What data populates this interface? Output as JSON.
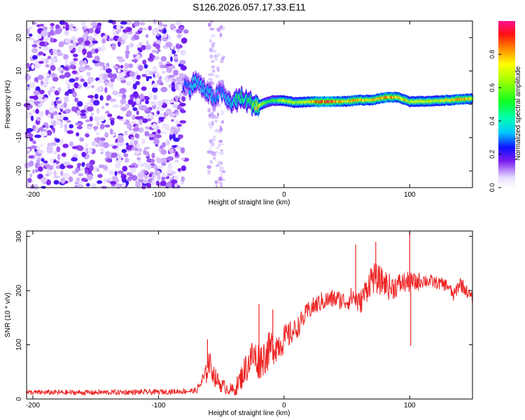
{
  "title": "S126.2026.057.17.33.E11",
  "chart_data": [
    {
      "type": "heatmap",
      "name": "spectrogram",
      "title": "S126.2026.057.17.33.E11",
      "xlabel": "Height of straight line (km)",
      "ylabel": "Frequency (Hz)",
      "xlim": [
        -205,
        150
      ],
      "ylim": [
        -25,
        25
      ],
      "x_ticks": [
        -200,
        -100,
        0,
        100
      ],
      "x_tick_labels": [
        "-200",
        "-100",
        "0",
        "100"
      ],
      "y_ticks": [
        -20,
        -10,
        0,
        10,
        20
      ],
      "y_tick_labels": [
        "-20",
        "-10",
        "0",
        "10",
        "20"
      ],
      "noise_region": {
        "x_start": -205,
        "x_end": -78
      },
      "sparse_noise": {
        "x_start": -60,
        "x_end": -48
      },
      "ridge": {
        "x": [
          -80,
          -75,
          -70,
          -65,
          -60,
          -55,
          -50,
          -45,
          -40,
          -35,
          -30,
          -25,
          -20,
          -15,
          -10,
          -5,
          0,
          10,
          20,
          30,
          40,
          50,
          60,
          70,
          80,
          90,
          100,
          110,
          120,
          130,
          140,
          150
        ],
        "freq": [
          6,
          5,
          7,
          5,
          3,
          2,
          4,
          1,
          0.5,
          2,
          1,
          0.2,
          -0.5,
          0.5,
          1,
          1.2,
          1,
          0.5,
          0.8,
          0.8,
          0.8,
          0.9,
          1.3,
          1.2,
          2.0,
          2.2,
          0.8,
          0.9,
          1.0,
          1.2,
          1.5,
          1.8
        ],
        "amplitude": [
          0.25,
          0.3,
          0.4,
          0.3,
          0.35,
          0.3,
          0.3,
          0.35,
          0.4,
          0.5,
          0.45,
          0.55,
          0.8,
          0.55,
          0.5,
          0.55,
          0.7,
          0.65,
          0.75,
          0.9,
          0.85,
          0.75,
          0.8,
          0.75,
          0.85,
          0.8,
          0.7,
          0.75,
          0.7,
          0.75,
          0.8,
          0.75
        ]
      },
      "colorbar": {
        "label": "Normalized spectral amplitude",
        "range": [
          0,
          1
        ],
        "ticks": [
          0.0,
          0.2,
          0.4,
          0.6,
          0.8
        ],
        "tick_labels": [
          "0.0",
          "0.2",
          "0.4",
          "0.6",
          "0.8"
        ]
      }
    },
    {
      "type": "line",
      "name": "snr",
      "xlabel": "Height of straight line (km)",
      "ylabel": "SNR (10 * v/v)",
      "xlim": [
        -205,
        150
      ],
      "ylim": [
        0,
        310
      ],
      "x_ticks": [
        -200,
        -100,
        0,
        100
      ],
      "x_tick_labels": [
        "-200",
        "-100",
        "0",
        "100"
      ],
      "y_ticks": [
        0,
        100,
        200,
        300
      ],
      "y_tick_labels": [
        "0",
        "100",
        "200",
        "300"
      ],
      "color": "#ee2222",
      "series": [
        {
          "name": "SNR",
          "x": [
            -205,
            -150,
            -100,
            -70,
            -62,
            -60,
            -55,
            -50,
            -45,
            -40,
            -35,
            -30,
            -25,
            -20,
            -15,
            -10,
            -5,
            0,
            10,
            20,
            30,
            40,
            50,
            55,
            60,
            65,
            70,
            75,
            80,
            85,
            90,
            95,
            100,
            105,
            110,
            120,
            130,
            135,
            140,
            145,
            150
          ],
          "y": [
            12,
            12,
            13,
            15,
            45,
            70,
            40,
            25,
            20,
            15,
            35,
            60,
            80,
            70,
            80,
            95,
            100,
            110,
            130,
            165,
            180,
            185,
            180,
            190,
            175,
            200,
            225,
            220,
            215,
            205,
            210,
            215,
            215,
            215,
            220,
            215,
            210,
            190,
            215,
            200,
            185
          ],
          "noise_amplitude": [
            5,
            5,
            5,
            5,
            20,
            25,
            18,
            14,
            12,
            12,
            22,
            30,
            35,
            35,
            35,
            35,
            30,
            28,
            20,
            18,
            18,
            18,
            18,
            20,
            22,
            25,
            30,
            28,
            25,
            25,
            22,
            20,
            20,
            18,
            15,
            12,
            12,
            12,
            15,
            12,
            10
          ]
        }
      ],
      "spikes": {
        "x": [
          -61,
          -20,
          -9,
          57,
          73,
          100,
          100.8
        ],
        "y": [
          110,
          175,
          165,
          285,
          290,
          310,
          98
        ]
      }
    }
  ]
}
